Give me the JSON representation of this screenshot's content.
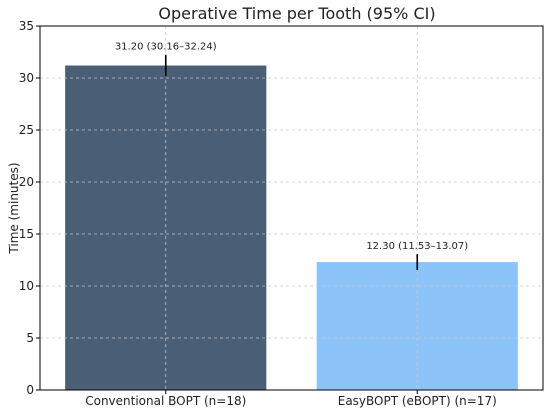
{
  "chart_data": {
    "type": "bar",
    "title": "Operative Time per Tooth (95% CI)",
    "xlabel": "",
    "ylabel": "Time (minutes)",
    "ylim": [
      0,
      35
    ],
    "yticks": [
      0,
      5,
      10,
      15,
      20,
      25,
      30,
      35
    ],
    "grid": true,
    "categories": [
      "Conventional BOPT (n=18)",
      "EasyBOPT (eBOPT) (n=17)"
    ],
    "values": [
      31.2,
      12.3
    ],
    "ci_low": [
      30.16,
      11.53
    ],
    "ci_high": [
      32.24,
      13.07
    ],
    "data_labels": [
      "31.20 (30.16–32.24)",
      "12.30 (11.53–13.07)"
    ],
    "colors": [
      "#4a5f75",
      "#8cc4fa"
    ]
  }
}
